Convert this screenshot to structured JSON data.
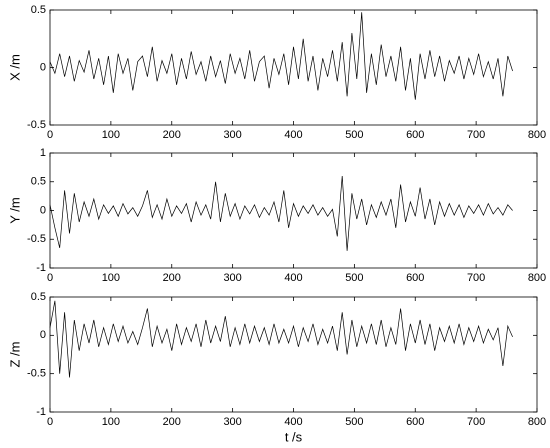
{
  "chart_data": [
    {
      "type": "line",
      "ylabel": "X /m",
      "color": "#000000",
      "xlim": [
        0,
        800
      ],
      "ylim": [
        -0.5,
        0.5
      ],
      "xticks": [
        0,
        100,
        200,
        300,
        400,
        500,
        600,
        700,
        800
      ],
      "yticks": [
        -0.5,
        0,
        0.5
      ],
      "x": [
        0,
        8,
        16,
        24,
        32,
        40,
        48,
        56,
        64,
        72,
        80,
        88,
        96,
        104,
        112,
        120,
        128,
        136,
        144,
        152,
        160,
        168,
        176,
        184,
        192,
        200,
        208,
        216,
        224,
        232,
        240,
        248,
        256,
        264,
        272,
        280,
        288,
        296,
        304,
        312,
        320,
        328,
        336,
        344,
        352,
        360,
        368,
        376,
        384,
        392,
        400,
        408,
        416,
        424,
        432,
        440,
        448,
        456,
        464,
        472,
        480,
        488,
        496,
        504,
        512,
        520,
        528,
        536,
        544,
        552,
        560,
        568,
        576,
        584,
        592,
        600,
        608,
        616,
        624,
        632,
        640,
        648,
        656,
        664,
        672,
        680,
        688,
        696,
        704,
        712,
        720,
        728,
        736,
        744,
        752,
        760
      ],
      "values": [
        0.05,
        -0.05,
        0.12,
        -0.08,
        0.1,
        -0.12,
        0.06,
        -0.04,
        0.15,
        -0.1,
        0.08,
        -0.15,
        0.1,
        -0.22,
        0.12,
        -0.05,
        0.08,
        -0.2,
        0.05,
        0.1,
        -0.08,
        0.18,
        -0.12,
        0.06,
        -0.05,
        0.12,
        -0.15,
        0.08,
        -0.1,
        0.14,
        -0.06,
        0.05,
        -0.12,
        0.1,
        -0.08,
        0.06,
        -0.14,
        0.12,
        -0.05,
        0.08,
        -0.1,
        0.15,
        -0.12,
        0.05,
        0.1,
        -0.18,
        0.08,
        -0.06,
        0.12,
        -0.15,
        0.18,
        -0.1,
        0.25,
        -0.12,
        0.1,
        -0.2,
        0.08,
        -0.08,
        0.15,
        -0.12,
        0.22,
        -0.25,
        0.3,
        -0.1,
        0.48,
        -0.22,
        0.12,
        -0.15,
        0.2,
        -0.08,
        0.1,
        -0.12,
        0.18,
        -0.2,
        0.08,
        -0.28,
        0.12,
        -0.1,
        0.15,
        -0.08,
        0.1,
        -0.12,
        0.06,
        -0.05,
        0.1,
        -0.1,
        0.08,
        -0.06,
        0.12,
        -0.08,
        0.05,
        -0.1,
        0.08,
        -0.25,
        0.1,
        -0.03
      ]
    },
    {
      "type": "line",
      "ylabel": "Y /m",
      "color": "#000000",
      "xlim": [
        0,
        800
      ],
      "ylim": [
        -1,
        1
      ],
      "xticks": [
        0,
        100,
        200,
        300,
        400,
        500,
        600,
        700,
        800
      ],
      "yticks": [
        -1,
        -0.5,
        0,
        0.5,
        1
      ],
      "x": [
        0,
        8,
        16,
        24,
        32,
        40,
        48,
        56,
        64,
        72,
        80,
        88,
        96,
        104,
        112,
        120,
        128,
        136,
        144,
        152,
        160,
        168,
        176,
        184,
        192,
        200,
        208,
        216,
        224,
        232,
        240,
        248,
        256,
        264,
        272,
        280,
        288,
        296,
        304,
        312,
        320,
        328,
        336,
        344,
        352,
        360,
        368,
        376,
        384,
        392,
        400,
        408,
        416,
        424,
        432,
        440,
        448,
        456,
        464,
        472,
        480,
        488,
        496,
        504,
        512,
        520,
        528,
        536,
        544,
        552,
        560,
        568,
        576,
        584,
        592,
        600,
        608,
        616,
        624,
        632,
        640,
        648,
        656,
        664,
        672,
        680,
        688,
        696,
        704,
        712,
        720,
        728,
        736,
        744,
        752,
        760
      ],
      "values": [
        0.1,
        -0.3,
        -0.65,
        0.35,
        -0.4,
        0.3,
        -0.2,
        0.15,
        -0.1,
        0.2,
        -0.15,
        0.1,
        -0.05,
        0.08,
        -0.1,
        0.12,
        -0.06,
        0.05,
        -0.1,
        0.08,
        0.35,
        -0.12,
        0.1,
        -0.15,
        0.2,
        -0.1,
        0.08,
        -0.05,
        0.12,
        -0.2,
        0.15,
        -0.08,
        0.1,
        -0.15,
        0.5,
        -0.2,
        0.3,
        -0.1,
        0.12,
        -0.15,
        0.08,
        -0.06,
        0.1,
        -0.12,
        0.05,
        -0.08,
        0.15,
        -0.2,
        0.35,
        -0.3,
        0.12,
        -0.1,
        0.08,
        -0.05,
        0.1,
        -0.08,
        0.05,
        -0.1,
        0.02,
        -0.45,
        0.6,
        -0.7,
        0.3,
        -0.15,
        0.2,
        -0.25,
        0.1,
        -0.12,
        0.15,
        -0.08,
        0.2,
        -0.3,
        0.45,
        -0.2,
        0.15,
        -0.1,
        0.4,
        -0.15,
        0.2,
        -0.25,
        0.15,
        -0.1,
        0.12,
        -0.08,
        0.1,
        -0.12,
        0.08,
        -0.05,
        0.1,
        -0.08,
        0.12,
        -0.06,
        0.05,
        -0.08,
        0.1,
        0.0
      ]
    },
    {
      "type": "line",
      "ylabel": "Z /m",
      "xlabel": "t /s",
      "color": "#000000",
      "xlim": [
        0,
        800
      ],
      "ylim": [
        -1,
        0.5
      ],
      "xticks": [
        0,
        100,
        200,
        300,
        400,
        500,
        600,
        700,
        800
      ],
      "yticks": [
        -1,
        -0.5,
        0,
        0.5
      ],
      "x": [
        0,
        8,
        16,
        24,
        32,
        40,
        48,
        56,
        64,
        72,
        80,
        88,
        96,
        104,
        112,
        120,
        128,
        136,
        144,
        152,
        160,
        168,
        176,
        184,
        192,
        200,
        208,
        216,
        224,
        232,
        240,
        248,
        256,
        264,
        272,
        280,
        288,
        296,
        304,
        312,
        320,
        328,
        336,
        344,
        352,
        360,
        368,
        376,
        384,
        392,
        400,
        408,
        416,
        424,
        432,
        440,
        448,
        456,
        464,
        472,
        480,
        488,
        496,
        504,
        512,
        520,
        528,
        536,
        544,
        552,
        560,
        568,
        576,
        584,
        592,
        600,
        608,
        616,
        624,
        632,
        640,
        648,
        656,
        664,
        672,
        680,
        688,
        696,
        704,
        712,
        720,
        728,
        736,
        744,
        752,
        760
      ],
      "values": [
        0.1,
        0.45,
        -0.5,
        0.3,
        -0.55,
        0.2,
        -0.2,
        0.15,
        -0.1,
        0.2,
        -0.15,
        0.1,
        -0.12,
        0.15,
        -0.08,
        0.12,
        -0.1,
        0.05,
        -0.12,
        0.1,
        0.35,
        -0.15,
        0.12,
        -0.1,
        0.08,
        -0.2,
        0.15,
        -0.12,
        0.1,
        -0.08,
        0.15,
        -0.15,
        0.2,
        -0.1,
        0.12,
        -0.08,
        0.25,
        -0.15,
        0.1,
        -0.12,
        0.15,
        -0.1,
        0.12,
        -0.08,
        0.1,
        -0.12,
        0.15,
        -0.1,
        0.08,
        -0.1,
        0.12,
        -0.15,
        0.1,
        -0.08,
        0.15,
        -0.12,
        0.08,
        -0.1,
        0.12,
        -0.2,
        0.3,
        -0.25,
        0.2,
        -0.15,
        0.12,
        -0.1,
        0.15,
        -0.12,
        0.2,
        -0.15,
        0.1,
        -0.12,
        0.35,
        -0.2,
        0.15,
        -0.1,
        0.2,
        -0.12,
        0.15,
        -0.2,
        0.1,
        -0.08,
        0.12,
        -0.1,
        0.15,
        -0.12,
        0.1,
        -0.08,
        0.12,
        -0.1,
        0.08,
        -0.06,
        0.1,
        -0.4,
        0.12,
        -0.02
      ]
    }
  ]
}
